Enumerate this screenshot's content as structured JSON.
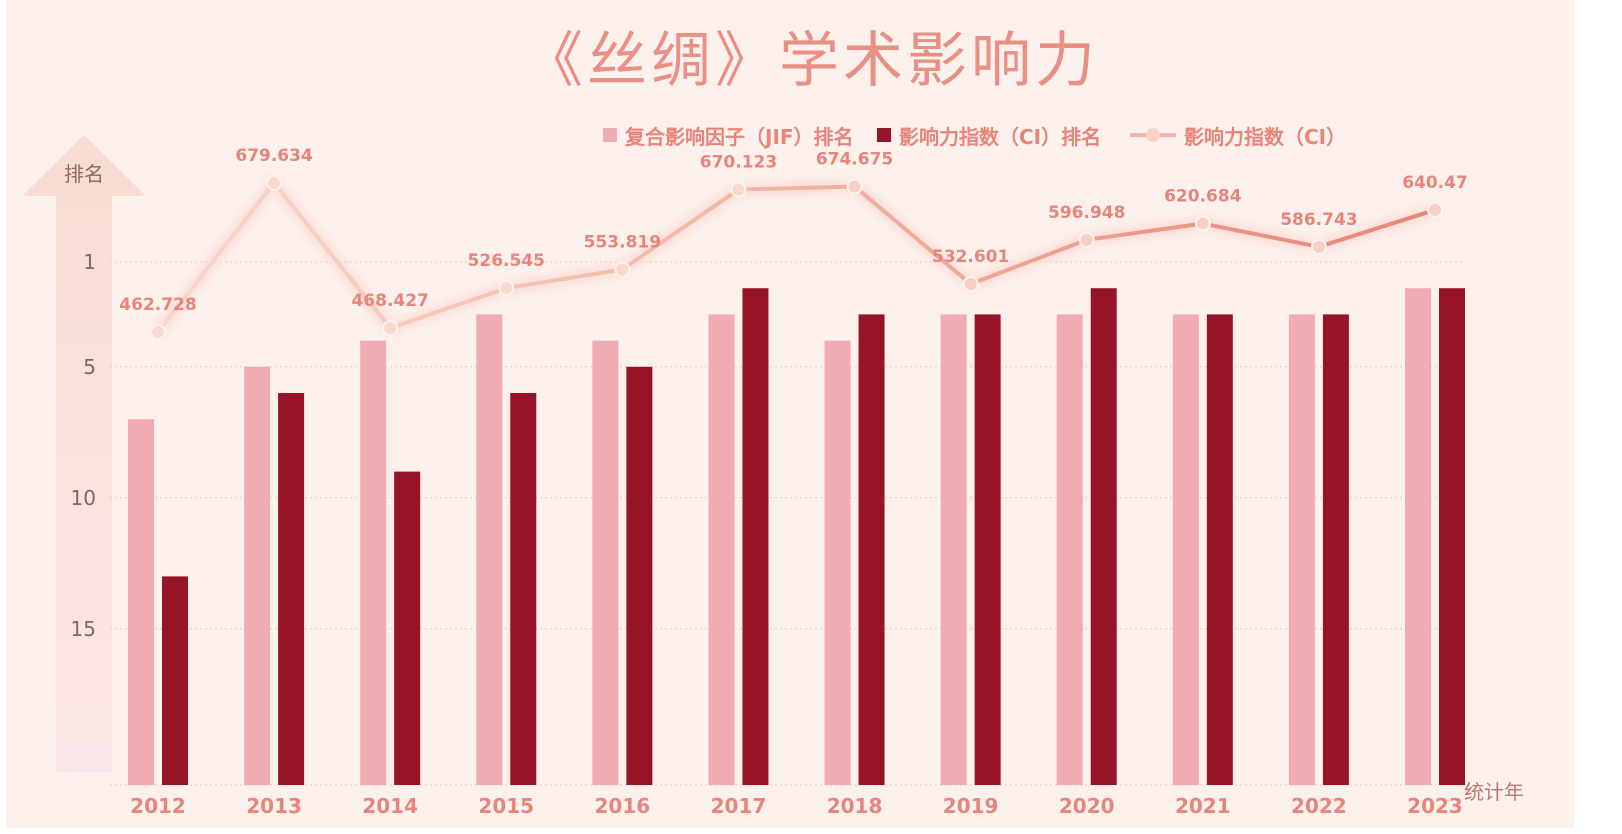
{
  "title": "《丝绸》学术影响力",
  "chart_data": {
    "type": "bar",
    "categories": [
      "2012",
      "2013",
      "2014",
      "2015",
      "2016",
      "2017",
      "2018",
      "2019",
      "2020",
      "2021",
      "2022",
      "2023"
    ],
    "series": [
      {
        "name": "复合影响因子（JIF）排名",
        "kind": "bar",
        "axis": "rank",
        "values": [
          7,
          5,
          4,
          3,
          4,
          3,
          4,
          3,
          3,
          3,
          3,
          2
        ]
      },
      {
        "name": "影响力指数（CI）排名",
        "kind": "bar",
        "axis": "rank",
        "values": [
          13,
          6,
          9,
          6,
          5,
          2,
          3,
          3,
          2,
          3,
          3,
          2
        ]
      },
      {
        "name": "影响力指数（CI）",
        "kind": "line",
        "axis": "ci",
        "values": [
          462.728,
          679.634,
          468.427,
          526.545,
          553.819,
          670.123,
          674.675,
          532.601,
          596.948,
          620.684,
          586.743,
          640.47
        ],
        "labels": [
          "462.728",
          "679.634",
          "468.427",
          "526.545",
          "553.819",
          "670.123",
          "674.675",
          "532.601",
          "596.948",
          "620.684",
          "586.743",
          "640.47"
        ]
      }
    ],
    "ylabel": "排名",
    "xlabel": "统计年",
    "y_ticks": [
      "1",
      "5",
      "10",
      "15"
    ],
    "y_reversed": true,
    "grid": "horizontal-dotted",
    "legend": "top",
    "colors": {
      "jif_bar": "#f1abb2",
      "ci_bar": "#951428",
      "ci_line_start": "#f8d6ca",
      "ci_line_end": "#e8847a",
      "label": "#e7857a",
      "grid": "#e8c6c1"
    }
  }
}
